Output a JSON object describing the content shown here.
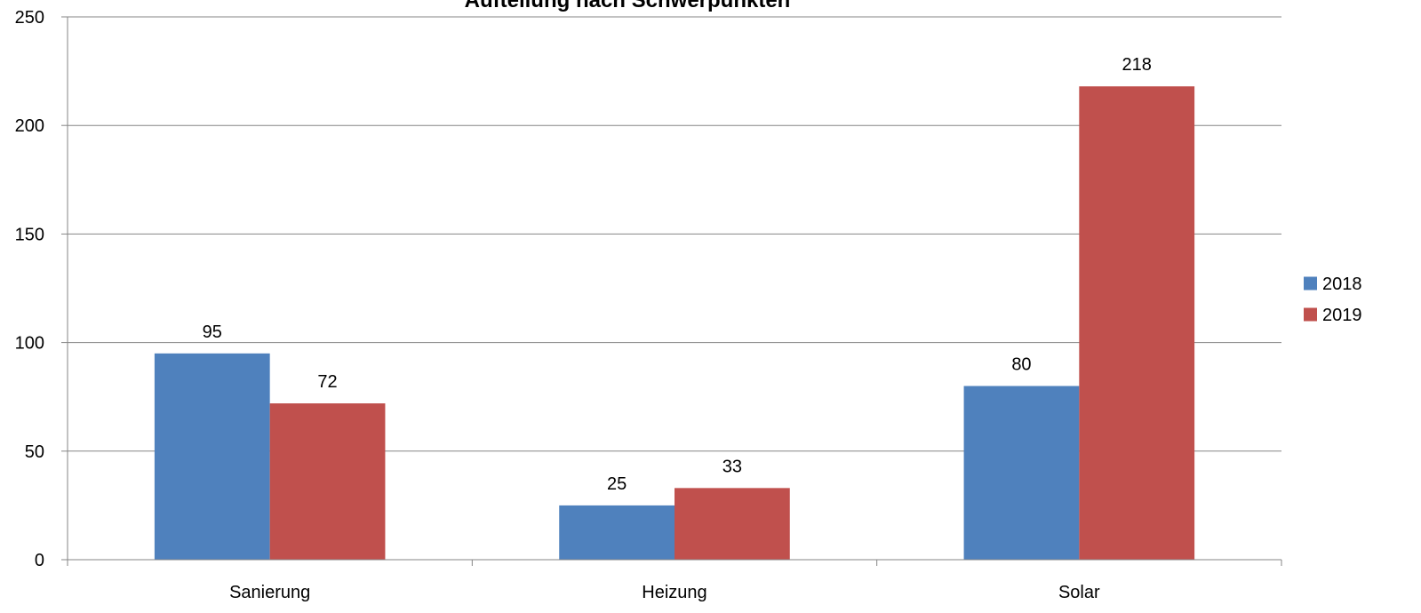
{
  "chart_data": {
    "type": "bar",
    "title": "Aufteilung nach Schwerpunkten",
    "xlabel": "",
    "ylabel": "",
    "categories": [
      "Sanierung",
      "Heizung",
      "Solar"
    ],
    "series": [
      {
        "name": "2018",
        "values": [
          95,
          25,
          80
        ],
        "color": "#4F81BD"
      },
      {
        "name": "2019",
        "values": [
          72,
          33,
          218
        ],
        "color": "#C0504D"
      }
    ],
    "ylim": [
      0,
      250
    ],
    "yticks": [
      0,
      50,
      100,
      150,
      200,
      250
    ],
    "grid": true,
    "legend": "right",
    "data_labels": true
  }
}
